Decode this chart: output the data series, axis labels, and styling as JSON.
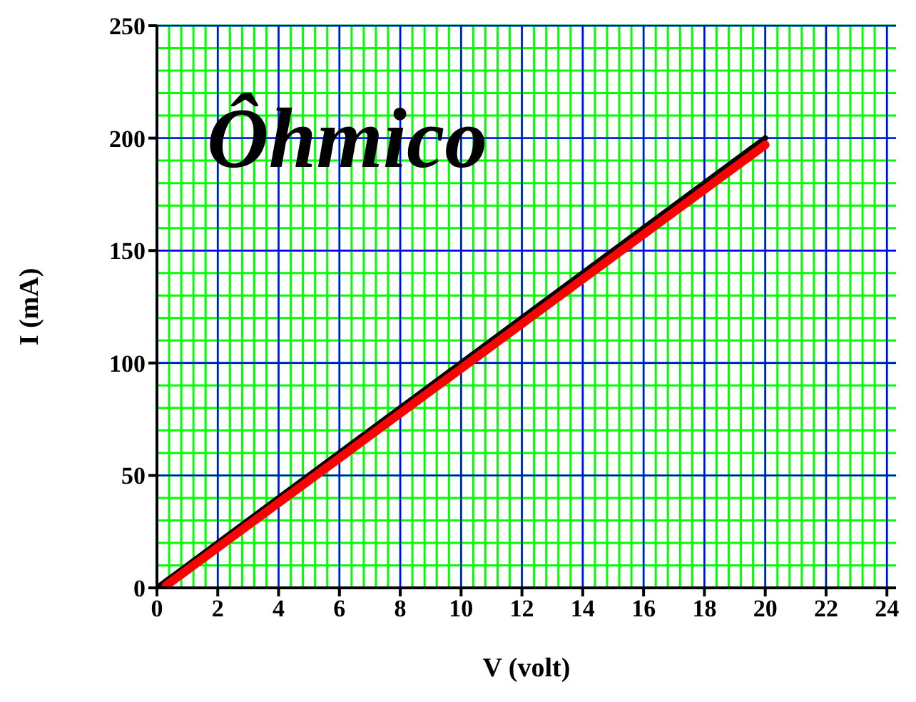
{
  "chart_data": {
    "type": "line",
    "xlabel": "V (volt)",
    "ylabel": "I (mA)",
    "annotations": [
      "Ôhmico"
    ],
    "series": [
      {
        "color": "#000000",
        "x": [
          0,
          20
        ],
        "values": [
          0,
          200
        ]
      },
      {
        "color": "#ff0000",
        "x": [
          0.3,
          20
        ],
        "values": [
          1,
          197
        ]
      }
    ],
    "xlim": [
      0,
      24.3
    ],
    "xticks": [
      0,
      2,
      4,
      6,
      8,
      10,
      12,
      14,
      16,
      18,
      20,
      22,
      24
    ],
    "ylim": [
      0,
      250
    ],
    "yticks": [
      0,
      50,
      100,
      150,
      200,
      250
    ],
    "grid": true,
    "marker": "none",
    "line_style": "solid"
  }
}
